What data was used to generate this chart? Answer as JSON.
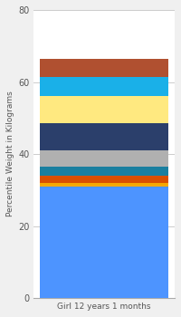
{
  "category": "Girl 12 years 1 months",
  "segments": [
    {
      "value": 31.0,
      "color": "#4d94ff"
    },
    {
      "value": 1.0,
      "color": "#f5a800"
    },
    {
      "value": 2.0,
      "color": "#d94f00"
    },
    {
      "value": 2.5,
      "color": "#1a7fa0"
    },
    {
      "value": 4.5,
      "color": "#b0b0b0"
    },
    {
      "value": 7.5,
      "color": "#2b3f6b"
    },
    {
      "value": 7.5,
      "color": "#ffe980"
    },
    {
      "value": 5.5,
      "color": "#1ab0e8"
    },
    {
      "value": 5.0,
      "color": "#b05030"
    }
  ],
  "ylabel": "Percentile Weight in Kilograms",
  "ylim": [
    0,
    80
  ],
  "yticks": [
    0,
    20,
    40,
    60,
    80
  ],
  "background_color": "#f0f0f0",
  "plot_bg_color": "#ffffff",
  "bar_width": 0.35,
  "title": ""
}
